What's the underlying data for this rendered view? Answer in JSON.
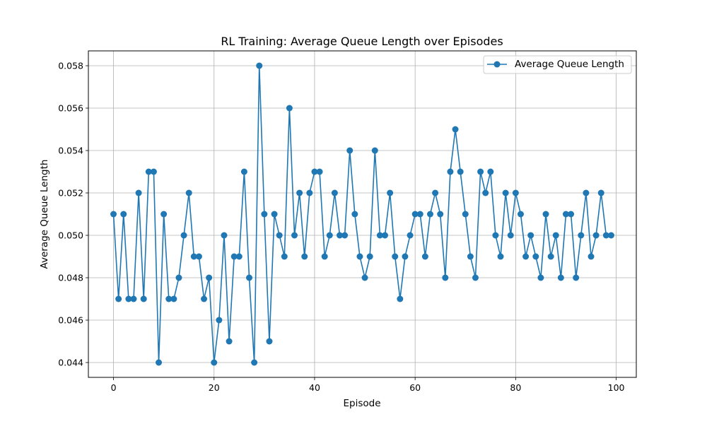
{
  "chart_data": {
    "type": "line",
    "title": "RL Training: Average Queue Length over Episodes",
    "xlabel": "Episode",
    "ylabel": "Average Queue Length",
    "xlim": [
      -5,
      104
    ],
    "ylim": [
      0.0433,
      0.0587
    ],
    "xticks": [
      0,
      20,
      40,
      60,
      80,
      100
    ],
    "xtick_labels": [
      "0",
      "20",
      "40",
      "60",
      "80",
      "100"
    ],
    "yticks": [
      0.044,
      0.046,
      0.048,
      0.05,
      0.052,
      0.054,
      0.056,
      0.058
    ],
    "ytick_labels": [
      "0.044",
      "0.046",
      "0.048",
      "0.050",
      "0.052",
      "0.054",
      "0.056",
      "0.058"
    ],
    "grid": true,
    "legend": {
      "position": "top-right"
    },
    "series": [
      {
        "name": "Average Queue Length",
        "color": "#1f77b4",
        "marker": "circle",
        "x": [
          0,
          1,
          2,
          3,
          4,
          5,
          6,
          7,
          8,
          9,
          10,
          11,
          12,
          13,
          14,
          15,
          16,
          17,
          18,
          19,
          20,
          21,
          22,
          23,
          24,
          25,
          26,
          27,
          28,
          29,
          30,
          31,
          32,
          33,
          34,
          35,
          36,
          37,
          38,
          39,
          40,
          41,
          42,
          43,
          44,
          45,
          46,
          47,
          48,
          49,
          50,
          51,
          52,
          53,
          54,
          55,
          56,
          57,
          58,
          59,
          60,
          61,
          62,
          63,
          64,
          65,
          66,
          67,
          68,
          69,
          70,
          71,
          72,
          73,
          74,
          75,
          76,
          77,
          78,
          79,
          80,
          81,
          82,
          83,
          84,
          85,
          86,
          87,
          88,
          89,
          90,
          91,
          92,
          93,
          94,
          95,
          96,
          97,
          98,
          99
        ],
        "values": [
          0.051,
          0.047,
          0.051,
          0.047,
          0.047,
          0.052,
          0.047,
          0.053,
          0.053,
          0.044,
          0.051,
          0.047,
          0.047,
          0.048,
          0.05,
          0.052,
          0.049,
          0.049,
          0.047,
          0.048,
          0.044,
          0.046,
          0.05,
          0.045,
          0.049,
          0.049,
          0.053,
          0.048,
          0.044,
          0.058,
          0.051,
          0.045,
          0.051,
          0.05,
          0.049,
          0.056,
          0.05,
          0.052,
          0.049,
          0.052,
          0.053,
          0.053,
          0.049,
          0.05,
          0.052,
          0.05,
          0.05,
          0.054,
          0.051,
          0.049,
          0.048,
          0.049,
          0.054,
          0.05,
          0.05,
          0.052,
          0.049,
          0.047,
          0.049,
          0.05,
          0.051,
          0.051,
          0.049,
          0.051,
          0.052,
          0.051,
          0.048,
          0.053,
          0.055,
          0.053,
          0.051,
          0.049,
          0.048,
          0.053,
          0.052,
          0.053,
          0.05,
          0.049,
          0.052,
          0.05,
          0.052,
          0.051,
          0.049,
          0.05,
          0.049,
          0.048,
          0.051,
          0.049,
          0.05,
          0.048,
          0.051,
          0.051,
          0.048,
          0.05,
          0.052,
          0.049,
          0.05,
          0.052,
          0.05,
          0.05
        ]
      }
    ]
  }
}
